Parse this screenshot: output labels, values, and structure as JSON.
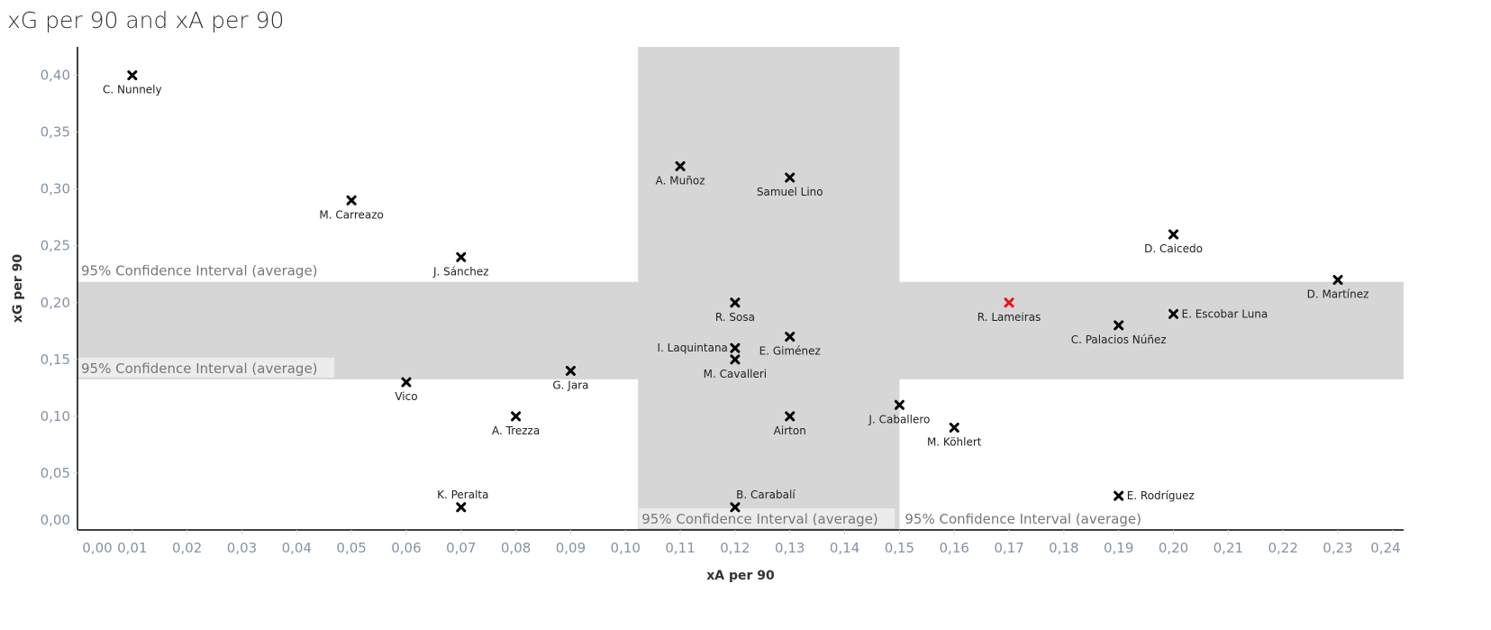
{
  "title": "xG per 90 and xA per 90",
  "chart_data": {
    "type": "scatter",
    "title": "xG per 90 and xA per 90",
    "xlabel": "xA per 90",
    "ylabel": "xG per 90",
    "xlim": [
      0,
      0.242
    ],
    "ylim": [
      0,
      0.425
    ],
    "xticks": [
      "0,00",
      "0,01",
      "0,02",
      "0,03",
      "0,04",
      "0,05",
      "0,06",
      "0,07",
      "0,08",
      "0,09",
      "0,10",
      "0,11",
      "0,12",
      "0,13",
      "0,14",
      "0,15",
      "0,16",
      "0,17",
      "0,18",
      "0,19",
      "0,20",
      "0,21",
      "0,22",
      "0,23",
      "0,24"
    ],
    "yticks": [
      "0,00",
      "0,05",
      "0,10",
      "0,15",
      "0,20",
      "0,25",
      "0,30",
      "0,35",
      "0,40"
    ],
    "grid": false,
    "bands": {
      "x_interval": [
        0.1023,
        0.15
      ],
      "y_interval": [
        0.1325,
        0.2183
      ],
      "label": "95% Confidence Interval (average)",
      "color": "#d6d6d6"
    },
    "marker_color": "#000000",
    "highlight_color": "#e8141b",
    "points": [
      {
        "name": "C. Nunnely",
        "x": 0.01,
        "y": 0.4
      },
      {
        "name": "M. Carreazo",
        "x": 0.05,
        "y": 0.29
      },
      {
        "name": "J. Sánchez",
        "x": 0.07,
        "y": 0.24
      },
      {
        "name": "A. Muñoz",
        "x": 0.11,
        "y": 0.32
      },
      {
        "name": "Samuel Lino",
        "x": 0.13,
        "y": 0.31
      },
      {
        "name": "D. Caicedo",
        "x": 0.2,
        "y": 0.26
      },
      {
        "name": "D. Martínez",
        "x": 0.23,
        "y": 0.22
      },
      {
        "name": "R. Lameiras",
        "x": 0.17,
        "y": 0.2,
        "highlight": true
      },
      {
        "name": "E. Escobar Luna",
        "x": 0.2,
        "y": 0.19
      },
      {
        "name": "C. Palacios Núñez",
        "x": 0.19,
        "y": 0.18
      },
      {
        "name": "R. Sosa",
        "x": 0.12,
        "y": 0.2
      },
      {
        "name": "E. Giménez",
        "x": 0.13,
        "y": 0.17
      },
      {
        "name": "I. Laquintana",
        "x": 0.12,
        "y": 0.16
      },
      {
        "name": "M. Cavalleri",
        "x": 0.12,
        "y": 0.15
      },
      {
        "name": "Vico",
        "x": 0.06,
        "y": 0.13
      },
      {
        "name": "G. Jara",
        "x": 0.09,
        "y": 0.14
      },
      {
        "name": "A. Trezza",
        "x": 0.08,
        "y": 0.1
      },
      {
        "name": "Airton",
        "x": 0.13,
        "y": 0.1
      },
      {
        "name": "J. Caballero",
        "x": 0.15,
        "y": 0.11
      },
      {
        "name": "M. Köhlert",
        "x": 0.16,
        "y": 0.09
      },
      {
        "name": "K. Peralta",
        "x": 0.07,
        "y": 0.02
      },
      {
        "name": "B. Carabalí",
        "x": 0.12,
        "y": 0.02
      },
      {
        "name": "E. Rodríguez",
        "x": 0.19,
        "y": 0.03
      }
    ]
  }
}
